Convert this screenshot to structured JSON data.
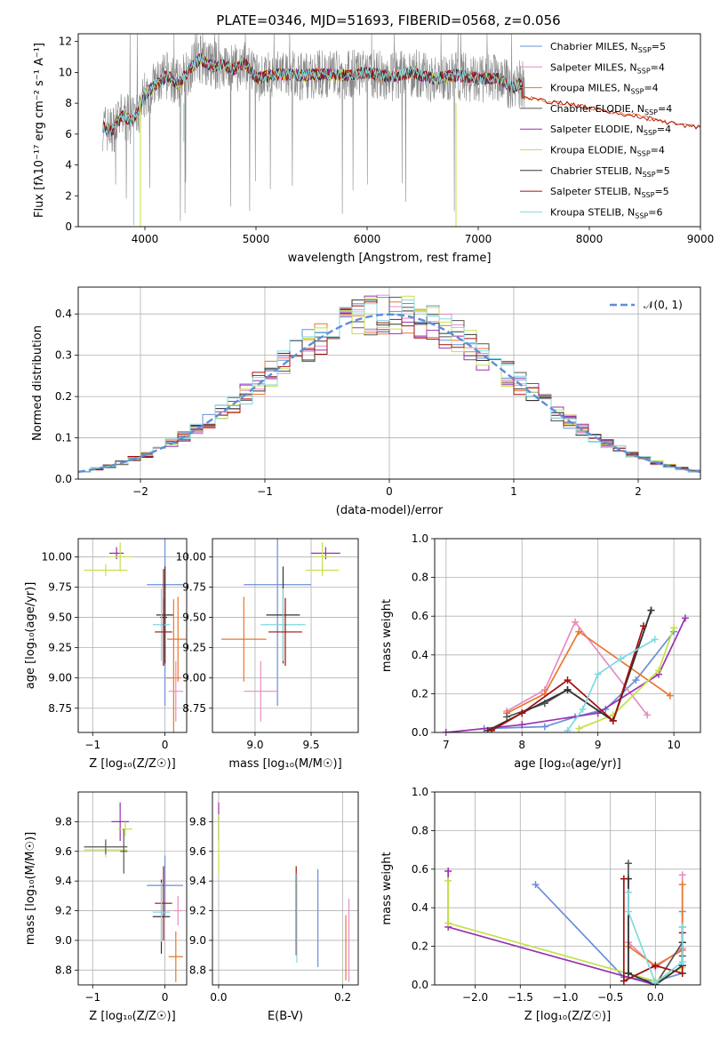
{
  "figure_title": "PLATE=0346, MJD=51693, FIBERID=0568, z=0.056",
  "colors": {
    "chabrier_miles": "#6a8fd8",
    "salpeter_miles": "#e88cc0",
    "kroupa_miles": "#e8772e",
    "chabrier_elodie": "#555555",
    "salpeter_elodie": "#9b30b0",
    "kroupa_elodie": "#c4e04a",
    "chabrier_stelib": "#333333",
    "salpeter_stelib": "#a01010",
    "kroupa_stelib": "#80d8e0",
    "observed": "#888888",
    "normal": "#5b8ed8"
  },
  "chart_data": [
    {
      "id": "spectrum",
      "type": "line",
      "title": "PLATE=0346, MJD=51693, FIBERID=0568, z=0.056",
      "xlabel": "wavelength [Angstrom, rest frame]",
      "ylabel": "Flux [fλ10⁻¹⁷ erg cm⁻² s⁻¹ A⁻¹]",
      "xlim": [
        3400,
        9000
      ],
      "ylim": [
        0,
        12.5
      ],
      "xticks": [
        "4000",
        "5000",
        "6000",
        "7000",
        "8000",
        "9000"
      ],
      "yticks": [
        "0",
        "2",
        "4",
        "6",
        "8",
        "10",
        "12"
      ],
      "grid": false,
      "legend": "top-right",
      "legend_entries": [
        {
          "sub": "MILES",
          "imf": "Chabrier",
          "nssp": "5",
          "color": "#6a8fd8"
        },
        {
          "sub": "MILES",
          "imf": "Salpeter",
          "nssp": "4",
          "color": "#e88cc0"
        },
        {
          "sub": "MILES",
          "imf": "Kroupa",
          "nssp": "4",
          "color": "#e8772e"
        },
        {
          "sub": "ELODIE",
          "imf": "Chabrier",
          "nssp": "4",
          "color": "#555555"
        },
        {
          "sub": "ELODIE",
          "imf": "Salpeter",
          "nssp": "4",
          "color": "#9b30b0"
        },
        {
          "sub": "ELODIE",
          "imf": "Kroupa",
          "nssp": "4",
          "color": "#c4e04a"
        },
        {
          "sub": "STELIB",
          "imf": "Chabrier",
          "nssp": "5",
          "color": "#333333"
        },
        {
          "sub": "STELIB",
          "imf": "Salpeter",
          "nssp": "5",
          "color": "#a01010"
        },
        {
          "sub": "STELIB",
          "imf": "Kroupa",
          "nssp": "6",
          "color": "#80d8e0"
        }
      ],
      "continuum": {
        "x": [
          3620,
          3700,
          3800,
          3900,
          4000,
          4100,
          4200,
          4300,
          4400,
          4500,
          4600,
          4700,
          4800,
          4900,
          5000,
          5200,
          5400,
          5600,
          5800,
          6000,
          6200,
          6400,
          6600,
          6800,
          7000,
          7200,
          7300,
          7400
        ],
        "y": [
          6.5,
          6.2,
          7.2,
          6.8,
          8.6,
          9.2,
          9.8,
          9.2,
          10.2,
          10.9,
          10.4,
          10.5,
          10.2,
          10.6,
          9.6,
          9.9,
          9.8,
          9.9,
          9.8,
          10.0,
          9.7,
          10.0,
          9.6,
          9.8,
          9.6,
          9.6,
          9.0,
          9.3
        ]
      },
      "model_tail": {
        "x": [
          7300,
          7600,
          7800,
          8000,
          8200,
          8400,
          8600,
          8800,
          9000
        ],
        "y": [
          8.6,
          8.1,
          8.0,
          7.7,
          7.4,
          7.2,
          6.9,
          6.6,
          6.4
        ]
      }
    },
    {
      "id": "residuals",
      "type": "area",
      "xlabel": "(data-model)/error",
      "ylabel": "Normed distribution",
      "xlim": [
        -2.5,
        2.5
      ],
      "ylim": [
        0,
        0.465
      ],
      "xticks": [
        "−2",
        "−1",
        "0",
        "1",
        "2"
      ],
      "yticks": [
        "0.0",
        "0.1",
        "0.2",
        "0.3",
        "0.4"
      ],
      "grid": true,
      "legend": "top-right",
      "legend_label": "𝒩(0, 1)",
      "bin_width": 0.1
    },
    {
      "id": "age-z",
      "type": "scatter",
      "xlabel": "Z [log₁₀(Z/Z☉)]",
      "ylabel": "age  [log₁₀(age/yr)]",
      "xlim": [
        -1.2,
        0.3
      ],
      "ylim": [
        8.55,
        10.15
      ],
      "xticks": [
        "−1",
        "0"
      ],
      "yticks": [
        "8.75",
        "9.00",
        "9.25",
        "9.50",
        "9.75",
        "10.00"
      ],
      "grid": true,
      "points": [
        {
          "x": -0.67,
          "y": 10.03,
          "xerr": 0.1,
          "yerr": 0.05,
          "color": "#9b30b0"
        },
        {
          "x": -0.62,
          "y": 10.0,
          "xerr": 0.17,
          "yerr": 0.12,
          "color": "#c4e04a"
        },
        {
          "x": -0.82,
          "y": 9.89,
          "xerr": 0.3,
          "yerr": 0.05,
          "color": "#c4e04a"
        },
        {
          "x": -0.0,
          "y": 9.77,
          "xerr": 0.25,
          "yerr": 1.0,
          "color": "#6a8fd8"
        },
        {
          "x": -0.02,
          "y": 9.5,
          "xerr": 0.05,
          "yerr": 0.4,
          "color": "#a01010"
        },
        {
          "x": 0.0,
          "y": 9.52,
          "xerr": 0.12,
          "yerr": 0.4,
          "color": "#333333"
        },
        {
          "x": -0.05,
          "y": 9.44,
          "xerr": 0.12,
          "yerr": 0.3,
          "color": "#80d8e0"
        },
        {
          "x": -0.02,
          "y": 9.38,
          "xerr": 0.12,
          "yerr": 0.28,
          "color": "#a01010"
        },
        {
          "x": 0.18,
          "y": 9.32,
          "xerr": 0.15,
          "yerr": 0.35,
          "color": "#e8772e"
        },
        {
          "x": 0.12,
          "y": 9.0,
          "xerr": 0.1,
          "yerr": 0.65,
          "color": "#e8772e"
        },
        {
          "x": 0.15,
          "y": 8.89,
          "xerr": 0.1,
          "yerr": 0.25,
          "color": "#e88cc0"
        }
      ]
    },
    {
      "id": "age-mass",
      "type": "scatter",
      "xlabel": "mass [log₁₀(M/M☉)]",
      "ylabel": "",
      "xlim": [
        8.62,
        9.92
      ],
      "ylim": [
        8.55,
        10.15
      ],
      "xticks": [
        "9.0",
        "9.5"
      ],
      "yticks": [
        "8.75",
        "9.00",
        "9.25",
        "9.50",
        "9.75",
        "10.00"
      ],
      "grid": true,
      "points": [
        {
          "x": 9.63,
          "y": 10.03,
          "xerr": 0.13,
          "yerr": 0.05,
          "color": "#9b30b0"
        },
        {
          "x": 9.6,
          "y": 10.0,
          "xerr": 0.08,
          "yerr": 0.12,
          "color": "#c4e04a"
        },
        {
          "x": 9.6,
          "y": 9.89,
          "xerr": 0.15,
          "yerr": 0.05,
          "color": "#c4e04a"
        },
        {
          "x": 9.2,
          "y": 9.77,
          "xerr": 0.3,
          "yerr": 1.0,
          "color": "#6a8fd8"
        },
        {
          "x": 9.25,
          "y": 9.52,
          "xerr": 0.15,
          "yerr": 0.4,
          "color": "#333333"
        },
        {
          "x": 9.25,
          "y": 9.44,
          "xerr": 0.2,
          "yerr": 0.3,
          "color": "#80d8e0"
        },
        {
          "x": 9.27,
          "y": 9.38,
          "xerr": 0.15,
          "yerr": 0.28,
          "color": "#a01010"
        },
        {
          "x": 8.9,
          "y": 9.32,
          "xerr": 0.2,
          "yerr": 0.35,
          "color": "#e8772e"
        },
        {
          "x": 9.05,
          "y": 8.89,
          "xerr": 0.15,
          "yerr": 0.25,
          "color": "#e88cc0"
        }
      ]
    },
    {
      "id": "mw-age",
      "type": "line",
      "xlabel": "age  [log₁₀(age/yr)]",
      "ylabel": "mass weight",
      "xlim": [
        6.85,
        10.35
      ],
      "ylim": [
        0,
        1.0
      ],
      "xticks": [
        "7",
        "8",
        "9",
        "10"
      ],
      "yticks": [
        "0.0",
        "0.2",
        "0.4",
        "0.6",
        "0.8",
        "1.0"
      ],
      "grid": true,
      "series": [
        {
          "color": "#6a8fd8",
          "x": [
            7.5,
            8.3,
            8.7,
            9.1,
            9.5,
            10.0
          ],
          "y": [
            0.02,
            0.03,
            0.08,
            0.12,
            0.27,
            0.52
          ]
        },
        {
          "color": "#e88cc0",
          "x": [
            7.8,
            8.3,
            8.7,
            9.65
          ],
          "y": [
            0.11,
            0.22,
            0.57,
            0.09
          ]
        },
        {
          "color": "#e8772e",
          "x": [
            7.8,
            8.3,
            8.75,
            9.95
          ],
          "y": [
            0.1,
            0.2,
            0.52,
            0.19
          ]
        },
        {
          "color": "#555555",
          "x": [
            7.8,
            8.3,
            8.6,
            9.2,
            9.7
          ],
          "y": [
            0.08,
            0.15,
            0.22,
            0.06,
            0.63
          ]
        },
        {
          "color": "#9b30b0",
          "x": [
            7.0,
            8.0,
            9.0,
            9.8,
            10.15
          ],
          "y": [
            0.0,
            0.04,
            0.1,
            0.3,
            0.59
          ]
        },
        {
          "color": "#c4e04a",
          "x": [
            8.75,
            9.2,
            9.8,
            10.0
          ],
          "y": [
            0.02,
            0.09,
            0.32,
            0.54
          ]
        },
        {
          "color": "#333333",
          "x": [
            7.55,
            8.0,
            8.6,
            9.2,
            9.7
          ],
          "y": [
            0.01,
            0.1,
            0.22,
            0.06,
            0.63
          ]
        },
        {
          "color": "#a01010",
          "x": [
            7.6,
            8.0,
            8.6,
            9.2,
            9.6
          ],
          "y": [
            0.01,
            0.1,
            0.27,
            0.06,
            0.55
          ]
        },
        {
          "color": "#80d8e0",
          "x": [
            8.6,
            8.8,
            9.0,
            9.3,
            9.75
          ],
          "y": [
            0.01,
            0.12,
            0.3,
            0.38,
            0.48
          ]
        }
      ]
    },
    {
      "id": "mass-z",
      "type": "scatter",
      "xlabel": "Z [log₁₀(Z/Z☉)]",
      "ylabel": "mass [log₁₀(M/M☉)]",
      "xlim": [
        -1.2,
        0.3
      ],
      "ylim": [
        8.7,
        10.0
      ],
      "xticks": [
        "−1",
        "0"
      ],
      "yticks": [
        "8.8",
        "9.0",
        "9.2",
        "9.4",
        "9.6",
        "9.8"
      ],
      "grid": true,
      "points": [
        {
          "x": -0.62,
          "y": 9.8,
          "xerr": 0.12,
          "yerr": 0.13,
          "color": "#9b30b0"
        },
        {
          "x": -0.55,
          "y": 9.75,
          "xerr": 0.1,
          "yerr": 0.05,
          "color": "#c4e04a"
        },
        {
          "x": -0.82,
          "y": 9.61,
          "xerr": 0.3,
          "yerr": 0.05,
          "color": "#c4e04a"
        },
        {
          "x": -0.82,
          "y": 9.63,
          "xerr": 0.3,
          "yerr": 0.05,
          "color": "#555555"
        },
        {
          "x": -0.57,
          "y": 9.6,
          "xerr": 0.05,
          "yerr": 0.15,
          "color": "#555555"
        },
        {
          "x": -0.0,
          "y": 9.37,
          "xerr": 0.25,
          "yerr": 0.2,
          "color": "#6a8fd8"
        },
        {
          "x": -0.02,
          "y": 9.25,
          "xerr": 0.12,
          "yerr": 0.25,
          "color": "#a01010"
        },
        {
          "x": -0.05,
          "y": 9.16,
          "xerr": 0.12,
          "yerr": 0.25,
          "color": "#333333"
        },
        {
          "x": -0.05,
          "y": 9.19,
          "xerr": 0.12,
          "yerr": 0.2,
          "color": "#80d8e0"
        },
        {
          "x": 0.18,
          "y": 9.2,
          "xerr": 0.05,
          "yerr": 0.1,
          "color": "#e88cc0"
        },
        {
          "x": 0.15,
          "y": 8.89,
          "xerr": 0.1,
          "yerr": 0.17,
          "color": "#e8772e"
        }
      ]
    },
    {
      "id": "mass-ebv",
      "type": "scatter",
      "xlabel": "E(B-V)",
      "ylabel": "",
      "xlim": [
        -0.01,
        0.225
      ],
      "ylim": [
        8.7,
        10.0
      ],
      "xticks": [
        "0.0",
        "0.2"
      ],
      "yticks": [
        "8.8",
        "9.0",
        "9.2",
        "9.4",
        "9.6",
        "9.8"
      ],
      "grid": true,
      "points": [
        {
          "x": 0.0,
          "y": 9.8,
          "xerr": 0.0,
          "yerr": 0.13,
          "color": "#9b30b0"
        },
        {
          "x": 0.0,
          "y": 9.65,
          "xerr": 0.0,
          "yerr": 0.2,
          "color": "#c4e04a"
        },
        {
          "x": 0.125,
          "y": 9.2,
          "xerr": 0.0,
          "yerr": 0.3,
          "color": "#a01010"
        },
        {
          "x": 0.126,
          "y": 9.15,
          "xerr": 0.0,
          "yerr": 0.3,
          "color": "#80d8e0"
        },
        {
          "x": 0.16,
          "y": 9.15,
          "xerr": 0.0,
          "yerr": 0.33,
          "color": "#6a8fd8"
        },
        {
          "x": 0.21,
          "y": 9.0,
          "xerr": 0.0,
          "yerr": 0.28,
          "color": "#e88cc0"
        },
        {
          "x": 0.205,
          "y": 8.95,
          "xerr": 0.0,
          "yerr": 0.22,
          "color": "#e8772e"
        }
      ]
    },
    {
      "id": "mw-z",
      "type": "line",
      "xlabel": "Z [log₁₀(Z/Z☉)]",
      "ylabel": "mass weight",
      "xlim": [
        -2.45,
        0.5
      ],
      "ylim": [
        0,
        1.0
      ],
      "xticks": [
        "−2.0",
        "−1.5",
        "−1.0",
        "−0.5",
        "0.0"
      ],
      "yticks": [
        "0.0",
        "0.2",
        "0.4",
        "0.6",
        "0.8",
        "1.0"
      ],
      "grid": true,
      "series": [
        {
          "color": "#6a8fd8",
          "x": [
            -1.33,
            -0.35,
            0.0,
            0.3,
            0.3
          ],
          "y": [
            0.52,
            0.04,
            0.02,
            0.06,
            0.38
          ]
        },
        {
          "color": "#e88cc0",
          "x": [
            -0.3,
            0.0,
            0.3,
            0.3
          ],
          "y": [
            0.22,
            0.09,
            0.19,
            0.57
          ]
        },
        {
          "color": "#e8772e",
          "x": [
            -0.3,
            0.0,
            0.3,
            0.3
          ],
          "y": [
            0.2,
            0.1,
            0.18,
            0.52
          ]
        },
        {
          "color": "#555555",
          "x": [
            -0.3,
            -0.3,
            0.0,
            0.3,
            0.3
          ],
          "y": [
            0.63,
            0.06,
            0.0,
            0.22,
            0.15
          ]
        },
        {
          "color": "#9b30b0",
          "x": [
            -2.3,
            -2.3,
            0.0,
            0.3,
            0.3
          ],
          "y": [
            0.59,
            0.3,
            0.0,
            0.1,
            0.3
          ]
        },
        {
          "color": "#c4e04a",
          "x": [
            -2.3,
            -2.3,
            0.0,
            0.3,
            0.3
          ],
          "y": [
            0.54,
            0.32,
            0.02,
            0.09,
            0.3
          ]
        },
        {
          "color": "#333333",
          "x": [
            -0.3,
            -0.3,
            0.0,
            0.3,
            0.3
          ],
          "y": [
            0.55,
            0.06,
            0.0,
            0.1,
            0.22
          ]
        },
        {
          "color": "#a01010",
          "x": [
            -0.35,
            -0.35,
            0.0,
            0.3,
            0.3
          ],
          "y": [
            0.55,
            0.02,
            0.1,
            0.06,
            0.27
          ]
        },
        {
          "color": "#80d8e0",
          "x": [
            -0.3,
            -0.3,
            0.0,
            0.3,
            0.3
          ],
          "y": [
            0.48,
            0.38,
            0.01,
            0.12,
            0.3
          ]
        }
      ]
    }
  ]
}
